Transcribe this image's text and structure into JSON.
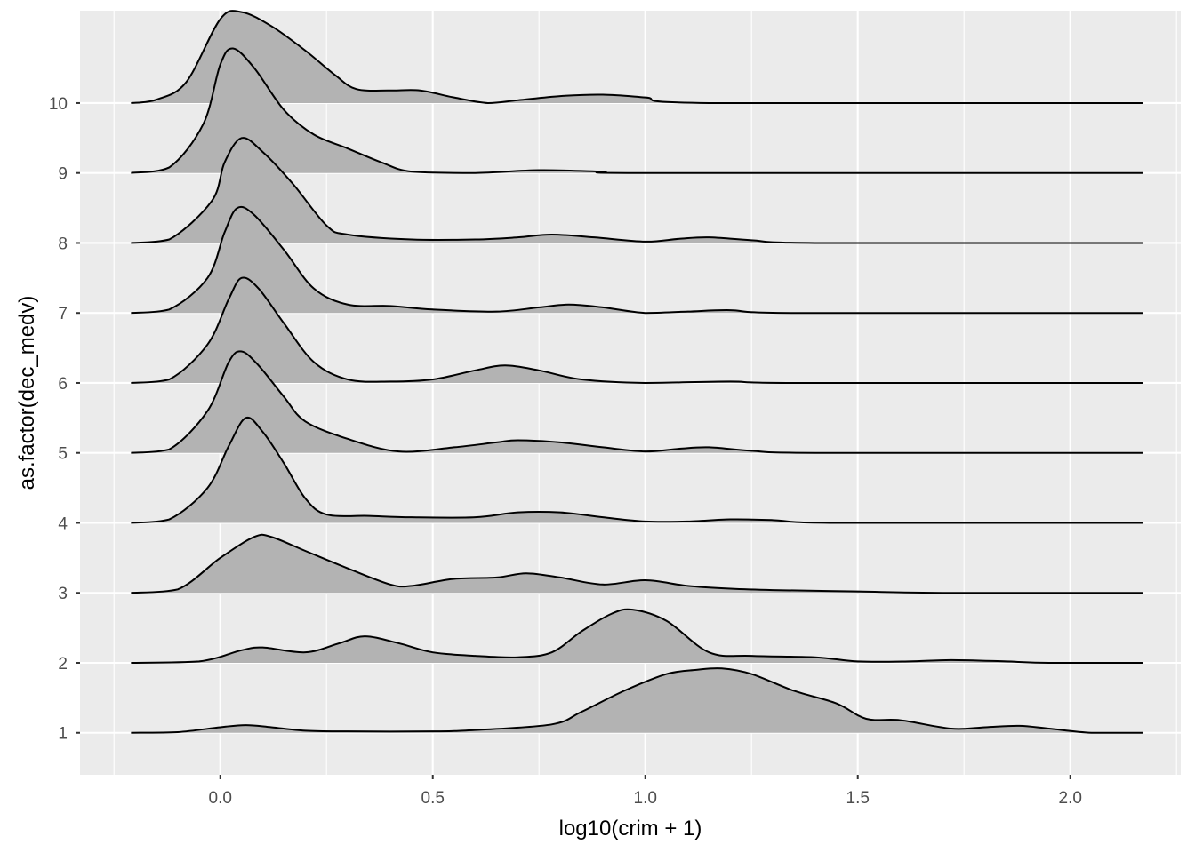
{
  "chart_data": {
    "type": "ridgeline",
    "xlabel": "log10(crim + 1)",
    "ylabel": "as.factor(dec_medv)",
    "xlim": [
      -0.33,
      2.26
    ],
    "x_ticks": [
      0.0,
      0.5,
      1.0,
      1.5,
      2.0
    ],
    "x_tick_labels": [
      "0.0",
      "0.5",
      "1.0",
      "1.5",
      "2.0"
    ],
    "categories": [
      "1",
      "2",
      "3",
      "4",
      "5",
      "6",
      "7",
      "8",
      "9",
      "10"
    ],
    "x_range": [
      -0.21,
      2.17
    ],
    "scale_units": 1.27,
    "grid": true,
    "colors": {
      "panel": "#ebebeb",
      "grid": "#ffffff",
      "fill": "#b3b3b3",
      "line": "#000000"
    },
    "series": [
      {
        "name": "1",
        "points": [
          [
            -0.21,
            0
          ],
          [
            -0.1,
            0.01
          ],
          [
            0.0,
            0.08
          ],
          [
            0.06,
            0.11
          ],
          [
            0.12,
            0.08
          ],
          [
            0.2,
            0.03
          ],
          [
            0.3,
            0.02
          ],
          [
            0.5,
            0.02
          ],
          [
            0.6,
            0.04
          ],
          [
            0.78,
            0.12
          ],
          [
            0.85,
            0.3
          ],
          [
            0.95,
            0.6
          ],
          [
            1.05,
            0.84
          ],
          [
            1.12,
            0.9
          ],
          [
            1.18,
            0.92
          ],
          [
            1.25,
            0.84
          ],
          [
            1.35,
            0.6
          ],
          [
            1.45,
            0.42
          ],
          [
            1.52,
            0.2
          ],
          [
            1.6,
            0.18
          ],
          [
            1.72,
            0.06
          ],
          [
            1.8,
            0.08
          ],
          [
            1.88,
            0.1
          ],
          [
            1.95,
            0.06
          ],
          [
            2.05,
            0
          ],
          [
            2.17,
            0
          ]
        ]
      },
      {
        "name": "2",
        "points": [
          [
            -0.21,
            0
          ],
          [
            -0.05,
            0.02
          ],
          [
            0.05,
            0.18
          ],
          [
            0.1,
            0.22
          ],
          [
            0.2,
            0.15
          ],
          [
            0.28,
            0.28
          ],
          [
            0.34,
            0.38
          ],
          [
            0.42,
            0.28
          ],
          [
            0.5,
            0.15
          ],
          [
            0.6,
            0.1
          ],
          [
            0.7,
            0.08
          ],
          [
            0.78,
            0.15
          ],
          [
            0.85,
            0.45
          ],
          [
            0.92,
            0.7
          ],
          [
            0.97,
            0.76
          ],
          [
            1.05,
            0.6
          ],
          [
            1.15,
            0.15
          ],
          [
            1.25,
            0.1
          ],
          [
            1.4,
            0.08
          ],
          [
            1.5,
            0.02
          ],
          [
            1.62,
            0.02
          ],
          [
            1.72,
            0.04
          ],
          [
            1.85,
            0.02
          ],
          [
            1.95,
            0
          ],
          [
            2.17,
            0
          ]
        ]
      },
      {
        "name": "3",
        "points": [
          [
            -0.21,
            0
          ],
          [
            -0.1,
            0.05
          ],
          [
            0.0,
            0.5
          ],
          [
            0.08,
            0.8
          ],
          [
            0.12,
            0.8
          ],
          [
            0.2,
            0.6
          ],
          [
            0.3,
            0.35
          ],
          [
            0.4,
            0.12
          ],
          [
            0.45,
            0.1
          ],
          [
            0.55,
            0.2
          ],
          [
            0.65,
            0.22
          ],
          [
            0.72,
            0.28
          ],
          [
            0.8,
            0.22
          ],
          [
            0.9,
            0.12
          ],
          [
            1.0,
            0.18
          ],
          [
            1.1,
            0.1
          ],
          [
            1.2,
            0.06
          ],
          [
            1.3,
            0.04
          ],
          [
            1.5,
            0.02
          ],
          [
            1.7,
            0
          ],
          [
            2.17,
            0
          ]
        ]
      },
      {
        "name": "4",
        "points": [
          [
            -0.21,
            0
          ],
          [
            -0.12,
            0.05
          ],
          [
            -0.03,
            0.5
          ],
          [
            0.02,
            1.1
          ],
          [
            0.06,
            1.5
          ],
          [
            0.1,
            1.3
          ],
          [
            0.15,
            0.85
          ],
          [
            0.2,
            0.35
          ],
          [
            0.25,
            0.12
          ],
          [
            0.35,
            0.1
          ],
          [
            0.45,
            0.08
          ],
          [
            0.6,
            0.08
          ],
          [
            0.7,
            0.15
          ],
          [
            0.8,
            0.15
          ],
          [
            0.9,
            0.08
          ],
          [
            1.0,
            0.02
          ],
          [
            1.1,
            0.02
          ],
          [
            1.2,
            0.05
          ],
          [
            1.3,
            0.04
          ],
          [
            1.45,
            0
          ],
          [
            2.17,
            0
          ]
        ]
      },
      {
        "name": "5",
        "points": [
          [
            -0.21,
            0
          ],
          [
            -0.12,
            0.05
          ],
          [
            -0.03,
            0.6
          ],
          [
            0.02,
            1.3
          ],
          [
            0.05,
            1.45
          ],
          [
            0.09,
            1.25
          ],
          [
            0.15,
            0.8
          ],
          [
            0.2,
            0.45
          ],
          [
            0.3,
            0.2
          ],
          [
            0.42,
            0.02
          ],
          [
            0.55,
            0.08
          ],
          [
            0.65,
            0.15
          ],
          [
            0.7,
            0.18
          ],
          [
            0.8,
            0.15
          ],
          [
            0.9,
            0.08
          ],
          [
            1.0,
            0.02
          ],
          [
            1.08,
            0.06
          ],
          [
            1.15,
            0.08
          ],
          [
            1.25,
            0.03
          ],
          [
            1.4,
            0
          ],
          [
            2.17,
            0
          ]
        ]
      },
      {
        "name": "6",
        "points": [
          [
            -0.21,
            0
          ],
          [
            -0.12,
            0.05
          ],
          [
            -0.03,
            0.55
          ],
          [
            0.02,
            1.2
          ],
          [
            0.05,
            1.5
          ],
          [
            0.09,
            1.35
          ],
          [
            0.15,
            0.85
          ],
          [
            0.22,
            0.3
          ],
          [
            0.3,
            0.05
          ],
          [
            0.4,
            0.02
          ],
          [
            0.5,
            0.05
          ],
          [
            0.6,
            0.18
          ],
          [
            0.67,
            0.25
          ],
          [
            0.75,
            0.18
          ],
          [
            0.85,
            0.05
          ],
          [
            1.0,
            0
          ],
          [
            1.2,
            0.02
          ],
          [
            1.35,
            0
          ],
          [
            2.17,
            0
          ]
        ]
      },
      {
        "name": "7",
        "points": [
          [
            -0.21,
            0
          ],
          [
            -0.12,
            0.05
          ],
          [
            -0.03,
            0.5
          ],
          [
            0.01,
            1.15
          ],
          [
            0.04,
            1.5
          ],
          [
            0.08,
            1.4
          ],
          [
            0.15,
            0.9
          ],
          [
            0.22,
            0.35
          ],
          [
            0.3,
            0.12
          ],
          [
            0.4,
            0.1
          ],
          [
            0.5,
            0.05
          ],
          [
            0.65,
            0.02
          ],
          [
            0.75,
            0.08
          ],
          [
            0.82,
            0.12
          ],
          [
            0.9,
            0.08
          ],
          [
            1.0,
            0
          ],
          [
            1.1,
            0.02
          ],
          [
            1.2,
            0.04
          ],
          [
            1.35,
            0
          ],
          [
            2.17,
            0
          ]
        ]
      },
      {
        "name": "8",
        "points": [
          [
            -0.21,
            0
          ],
          [
            -0.12,
            0.05
          ],
          [
            -0.02,
            0.6
          ],
          [
            0.01,
            1.15
          ],
          [
            0.05,
            1.5
          ],
          [
            0.1,
            1.3
          ],
          [
            0.17,
            0.85
          ],
          [
            0.25,
            0.25
          ],
          [
            0.3,
            0.12
          ],
          [
            0.45,
            0.05
          ],
          [
            0.6,
            0.05
          ],
          [
            0.7,
            0.08
          ],
          [
            0.78,
            0.12
          ],
          [
            0.88,
            0.08
          ],
          [
            1.0,
            0.02
          ],
          [
            1.08,
            0.06
          ],
          [
            1.15,
            0.08
          ],
          [
            1.25,
            0.04
          ],
          [
            1.4,
            0
          ],
          [
            2.17,
            0
          ]
        ]
      },
      {
        "name": "9",
        "points": [
          [
            -0.21,
            0
          ],
          [
            -0.12,
            0.08
          ],
          [
            -0.04,
            0.7
          ],
          [
            0.0,
            1.55
          ],
          [
            0.03,
            1.78
          ],
          [
            0.08,
            1.5
          ],
          [
            0.15,
            0.9
          ],
          [
            0.22,
            0.55
          ],
          [
            0.3,
            0.35
          ],
          [
            0.38,
            0.15
          ],
          [
            0.45,
            0.02
          ],
          [
            0.6,
            0
          ],
          [
            0.75,
            0.04
          ],
          [
            0.9,
            0.02
          ],
          [
            1.0,
            0
          ],
          [
            2.17,
            0
          ]
        ]
      },
      {
        "name": "10",
        "points": [
          [
            -0.21,
            0
          ],
          [
            -0.15,
            0.05
          ],
          [
            -0.08,
            0.3
          ],
          [
            0.0,
            1.2
          ],
          [
            0.05,
            1.3
          ],
          [
            0.12,
            1.1
          ],
          [
            0.2,
            0.75
          ],
          [
            0.27,
            0.4
          ],
          [
            0.32,
            0.2
          ],
          [
            0.4,
            0.18
          ],
          [
            0.47,
            0.18
          ],
          [
            0.55,
            0.08
          ],
          [
            0.63,
            0
          ],
          [
            0.7,
            0.04
          ],
          [
            0.8,
            0.1
          ],
          [
            0.9,
            0.12
          ],
          [
            1.0,
            0.08
          ],
          [
            1.15,
            0
          ],
          [
            2.17,
            0
          ]
        ]
      }
    ]
  }
}
